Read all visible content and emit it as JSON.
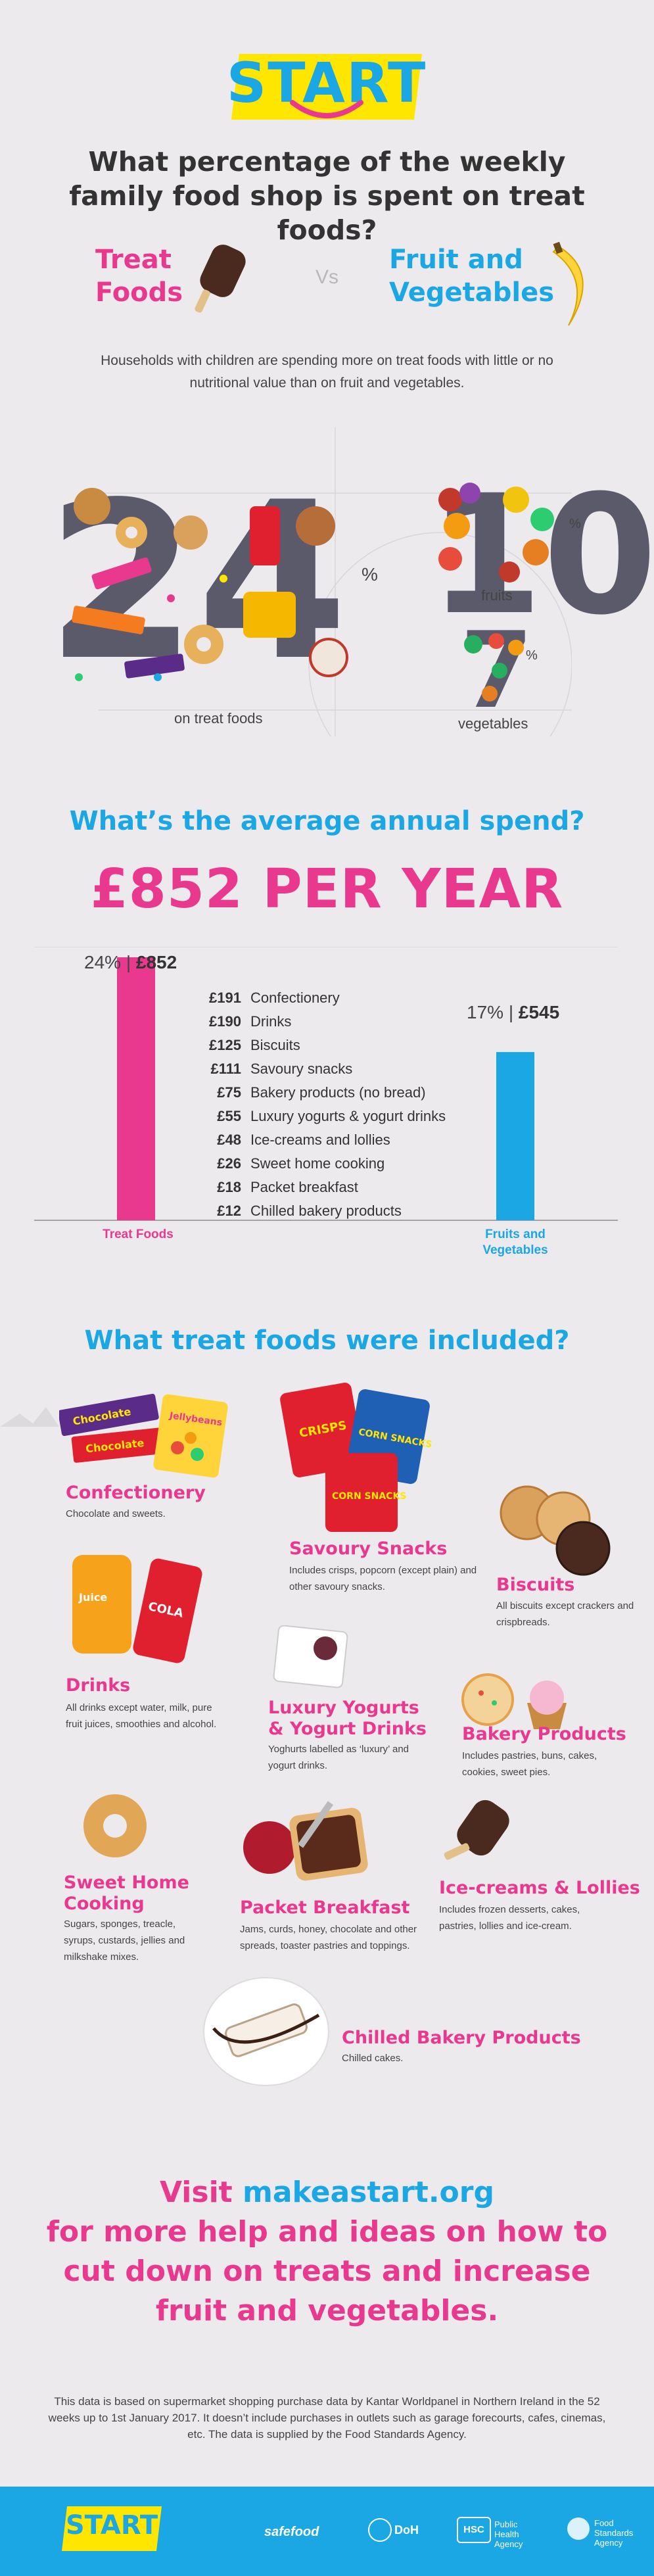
{
  "logo": {
    "text": "START"
  },
  "headline": "What percentage of the weekly family food shop is spent on treat foods?",
  "compare": {
    "left_label": "Treat Foods",
    "vs": "Vs",
    "right_label": "Fruit and Vegetables"
  },
  "intro": "Households with children are spending more on treat foods with little or no nutritional value than on fruit and vegetables.",
  "percentages": {
    "treat_value": "24",
    "treat_unit": "%",
    "treat_caption": "on treat foods",
    "fruit_value": "10",
    "fruit_unit": "%",
    "fruit_caption": "fruits",
    "veg_value": "7",
    "veg_unit": "%",
    "veg_caption": "vegetables"
  },
  "spend_title": "What’s the average annual spend?",
  "per_year": "£852 PER YEAR",
  "chart_data": {
    "type": "bar",
    "categories": [
      "Treat Foods",
      "Fruits and Vegetables"
    ],
    "values": [
      852,
      545
    ],
    "percent_labels": [
      "24%",
      "17%"
    ],
    "value_labels": [
      "£852",
      "£545"
    ],
    "separator": "|",
    "colors": [
      "#e8398f",
      "#1aa7e3"
    ],
    "ylim": [
      0,
      852
    ],
    "breakdown": [
      {
        "value": "£191",
        "label": "Confectionery"
      },
      {
        "value": "£190",
        "label": "Drinks"
      },
      {
        "value": "£125",
        "label": "Biscuits"
      },
      {
        "value": "£111",
        "label": "Savoury snacks"
      },
      {
        "value": "£75",
        "label": "Bakery products (no bread)"
      },
      {
        "value": "£55",
        "label": "Luxury yogurts & yogurt drinks"
      },
      {
        "value": "£48",
        "label": "Ice-creams and lollies"
      },
      {
        "value": "£26",
        "label": "Sweet home cooking"
      },
      {
        "value": "£18",
        "label": "Packet breakfast"
      },
      {
        "value": "£12",
        "label": "Chilled bakery products"
      }
    ]
  },
  "included_title": "What treat foods were included?",
  "categories": {
    "confectionery": {
      "title": "Confectionery",
      "desc": "Chocolate and sweets."
    },
    "savoury": {
      "title": "Savoury Snacks",
      "desc": "Includes crisps, popcorn (except plain) and other savoury snacks."
    },
    "biscuits": {
      "title": "Biscuits",
      "desc": "All biscuits except crackers and crispbreads."
    },
    "drinks": {
      "title": "Drinks",
      "desc": "All drinks except water, milk, pure fruit juices, smoothies and alcohol."
    },
    "yogurts": {
      "title": "Luxury Yogurts & Yogurt Drinks",
      "desc": "Yoghurts labelled as ‘luxury’ and yogurt drinks."
    },
    "bakery": {
      "title": "Bakery Products",
      "desc": "Includes pastries, buns, cakes, cookies, sweet pies."
    },
    "home": {
      "title": "Sweet Home Cooking",
      "desc": "Sugars, sponges, treacle, syrups, custards, jellies and milkshake mixes."
    },
    "breakfast": {
      "title": "Packet Breakfast",
      "desc": "Jams, curds, honey, chocolate and other spreads, toaster pastries and toppings."
    },
    "icecream": {
      "title": "Ice-creams & Lollies",
      "desc": "Includes frozen desserts, cakes, pastries, lollies and ice-cream."
    },
    "chilled": {
      "title": "Chilled Bakery Products",
      "desc": "Chilled cakes."
    }
  },
  "product_text": {
    "choc_bar_1": "Chocolate",
    "choc_bar_2": "Chocolate",
    "sweets_bag": "Jellybeans",
    "crisps": "CRISPS",
    "corn": "CORN SNACKS",
    "juice": "Juice",
    "cola": "COLA"
  },
  "cta": {
    "line1_pre": "Visit ",
    "line1_link": "makeastart.org",
    "line2": "for more help and ideas on how to cut down on treats and increase fruit and vegetables."
  },
  "disclaimer": "This data is based on supermarket shopping purchase data by Kantar Worldpanel in Northern Ireland in the 52 weeks up to 1st January 2017. It doesn’t include purchases in outlets such as garage forecourts, cafes, cinemas, etc. The data is supplied by the Food Standards Agency.",
  "footer": {
    "logo": "START",
    "safefood": "safefood",
    "doh": "DoH",
    "hsc": "HSC",
    "pha": "Public Health Agency",
    "fsa": "Food Standards Agency"
  },
  "colors": {
    "pink": "#e8398f",
    "blue": "#1aa7e3",
    "yellow": "#ffe600",
    "grey": "#5a5a6a"
  }
}
